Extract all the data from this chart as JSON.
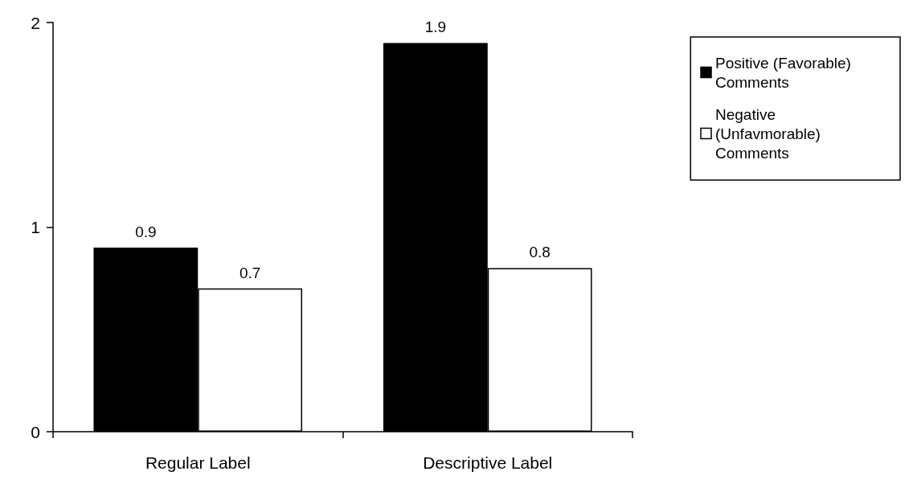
{
  "chart_data": {
    "type": "bar",
    "categories": [
      "Regular Label",
      "Descriptive Label"
    ],
    "series": [
      {
        "name": "Positive (Favorable) Comments",
        "color": "#000000",
        "values": [
          0.9,
          1.9
        ]
      },
      {
        "name": "Negative (Unfavmorable) Comments",
        "color": "#ffffff",
        "values": [
          0.7,
          0.8
        ]
      }
    ],
    "ylim": [
      0,
      2
    ],
    "yticks": [
      0,
      1,
      2
    ],
    "grid": false,
    "legend": "top right",
    "data_labels": true
  }
}
